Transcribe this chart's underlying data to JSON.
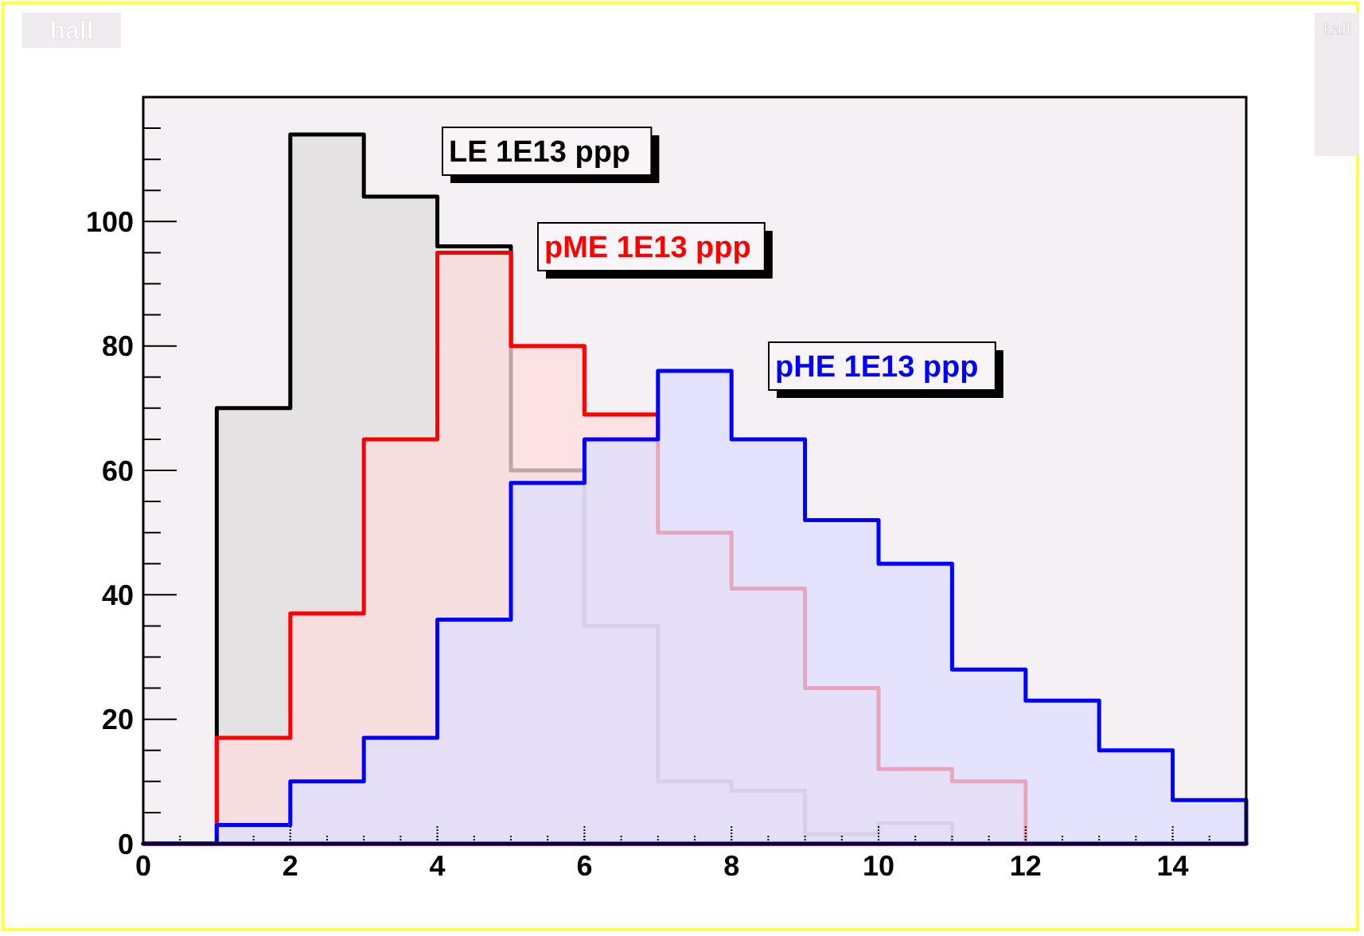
{
  "chart_data": {
    "type": "histogram",
    "title": "hall",
    "annotations": [
      "hall"
    ],
    "bins": [
      0,
      1,
      2,
      3,
      4,
      5,
      6,
      7,
      8,
      9,
      10,
      11,
      12,
      13,
      14,
      15
    ],
    "series": [
      {
        "name": "LE 1E13 ppp",
        "color": "#000000",
        "values": [
          0,
          70,
          114,
          104,
          96,
          60,
          35,
          10,
          8.5,
          1.5,
          3.3,
          0,
          0,
          0,
          0
        ]
      },
      {
        "name": "pME 1E13 ppp",
        "color": "#ff0000",
        "values": [
          0,
          17,
          37,
          65,
          95,
          80,
          69,
          50,
          41,
          25,
          12,
          10,
          0,
          0,
          0
        ]
      },
      {
        "name": "pHE 1E13 ppp",
        "color": "#0000ff",
        "values": [
          0,
          3,
          10,
          17,
          36,
          58,
          65,
          76,
          65,
          52,
          45,
          28,
          23,
          15,
          7
        ]
      }
    ],
    "xlim": [
      0,
      15
    ],
    "xticks": [
      0,
      2,
      4,
      6,
      8,
      10,
      12,
      14
    ],
    "ylim": [
      0,
      120
    ],
    "yticks": [
      0,
      20,
      40,
      60,
      80,
      100
    ]
  }
}
